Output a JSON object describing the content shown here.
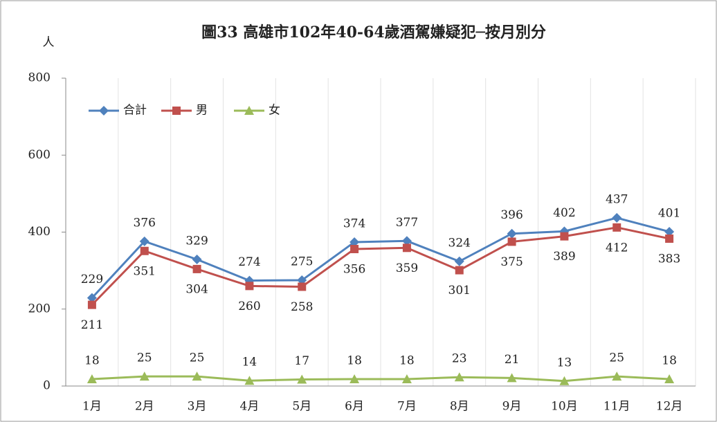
{
  "chart_data": {
    "type": "line",
    "title": "圖33 高雄市102年40-64歲酒駕嫌疑犯─按月別分",
    "y_label": "人",
    "categories": [
      "1月",
      "2月",
      "3月",
      "4月",
      "5月",
      "6月",
      "7月",
      "8月",
      "9月",
      "10月",
      "11月",
      "12月"
    ],
    "series": [
      {
        "name": "合計",
        "color": "#4f81bd",
        "marker": "diamond",
        "values": [
          229,
          376,
          329,
          274,
          275,
          374,
          377,
          324,
          396,
          402,
          437,
          401
        ]
      },
      {
        "name": "男",
        "color": "#c0504d",
        "marker": "square",
        "values": [
          211,
          351,
          304,
          260,
          258,
          356,
          359,
          301,
          375,
          389,
          412,
          383
        ]
      },
      {
        "name": "女",
        "color": "#9bbb59",
        "marker": "triangle",
        "values": [
          18,
          25,
          25,
          14,
          17,
          18,
          18,
          23,
          21,
          13,
          25,
          18
        ]
      }
    ],
    "ylim": [
      0,
      800
    ],
    "yticks": [
      0,
      200,
      400,
      600,
      800
    ],
    "legend": "top-left"
  }
}
